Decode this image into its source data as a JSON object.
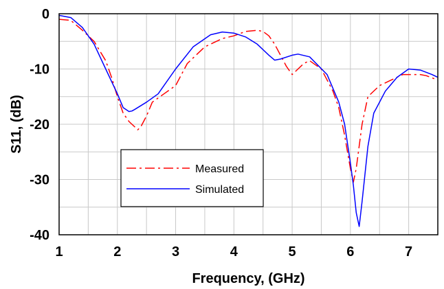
{
  "chart_data": {
    "type": "line",
    "xlabel": "Frequency,  (GHz)",
    "ylabel": "S11,  (dB)",
    "xlim": [
      1,
      7.5
    ],
    "ylim": [
      -40,
      0
    ],
    "xticks": [
      1,
      2,
      3,
      4,
      5,
      6,
      7
    ],
    "yticks": [
      0,
      -10,
      -20,
      -30,
      -40
    ],
    "xtick_labels": [
      "1",
      "2",
      "3",
      "4",
      "5",
      "6",
      "7"
    ],
    "ytick_labels": [
      "0",
      "-10",
      "-20",
      "-30",
      "-40"
    ],
    "grid": true,
    "legend_position": "lower-left",
    "series": [
      {
        "name": "Measured",
        "color": "#ff0000",
        "dash": "dash-dot",
        "x": [
          1.0,
          1.2,
          1.4,
          1.6,
          1.8,
          1.9,
          2.0,
          2.1,
          2.2,
          2.3,
          2.35,
          2.4,
          2.5,
          2.6,
          2.8,
          3.0,
          3.2,
          3.5,
          3.8,
          4.0,
          4.2,
          4.4,
          4.5,
          4.6,
          4.7,
          4.8,
          4.9,
          5.0,
          5.1,
          5.2,
          5.3,
          5.5,
          5.7,
          5.8,
          5.9,
          6.0,
          6.05,
          6.1,
          6.2,
          6.3,
          6.5,
          6.7,
          6.9,
          7.0,
          7.2,
          7.3,
          7.5
        ],
        "y": [
          -1,
          -1.2,
          -3,
          -5,
          -8.5,
          -11.5,
          -15,
          -18,
          -19.5,
          -20.5,
          -21,
          -20.5,
          -18.5,
          -16,
          -14.5,
          -13,
          -9,
          -6,
          -4.5,
          -4,
          -3.2,
          -3,
          -3.2,
          -4,
          -5.5,
          -7.5,
          -9.5,
          -11,
          -10,
          -9,
          -8.5,
          -10,
          -14,
          -17,
          -22,
          -28,
          -30.5,
          -28,
          -20,
          -15,
          -13,
          -12,
          -11,
          -11,
          -11,
          -11.2,
          -12
        ]
      },
      {
        "name": "Simulated",
        "color": "#0000ff",
        "dash": "solid",
        "x": [
          1.0,
          1.2,
          1.4,
          1.6,
          1.8,
          2.0,
          2.1,
          2.2,
          2.25,
          2.3,
          2.5,
          2.7,
          3.0,
          3.3,
          3.6,
          3.8,
          4.0,
          4.2,
          4.4,
          4.6,
          4.7,
          4.8,
          5.0,
          5.1,
          5.3,
          5.6,
          5.8,
          5.9,
          6.0,
          6.05,
          6.1,
          6.15,
          6.2,
          6.3,
          6.4,
          6.6,
          6.8,
          7.0,
          7.2,
          7.4,
          7.5
        ],
        "y": [
          -0.3,
          -0.7,
          -2.5,
          -5.5,
          -10,
          -14.5,
          -17,
          -17.7,
          -17.6,
          -17.3,
          -16,
          -14.5,
          -10,
          -6,
          -3.8,
          -3.3,
          -3.5,
          -4.2,
          -5.5,
          -7.5,
          -8.4,
          -8.2,
          -7.5,
          -7.3,
          -7.8,
          -11,
          -16,
          -20,
          -27,
          -31,
          -36,
          -38.5,
          -34,
          -24,
          -18,
          -14,
          -11.5,
          -10,
          -10.2,
          -11,
          -11.5
        ]
      }
    ]
  }
}
